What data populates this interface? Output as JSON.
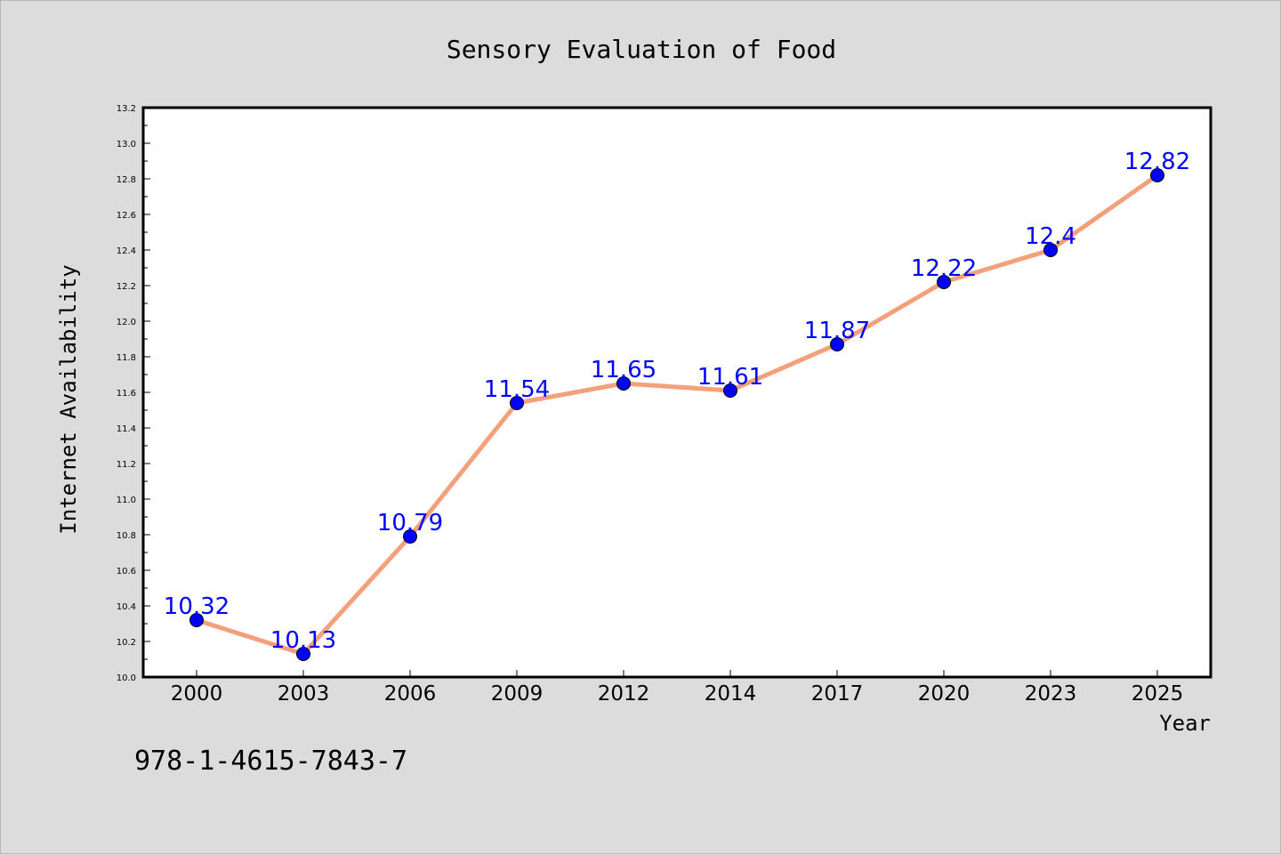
{
  "chart_data": {
    "type": "line",
    "title": "Sensory Evaluation of Food",
    "xlabel": "Year",
    "ylabel": "Internet Availability",
    "categories": [
      "2000",
      "2003",
      "2006",
      "2009",
      "2012",
      "2014",
      "2017",
      "2020",
      "2023",
      "2025"
    ],
    "series": [
      {
        "values": [
          10.32,
          10.13,
          10.79,
          11.54,
          11.65,
          11.61,
          11.87,
          12.22,
          12.4,
          12.82
        ],
        "data_labels": [
          "10.32",
          "10.13",
          "10.79",
          "11.54",
          "11.65",
          "11.61",
          "11.87",
          "12.22",
          "12.4",
          "12.82"
        ],
        "line_color": "#f4a07a",
        "marker_color": "#0000ff"
      }
    ],
    "ylim": [
      10.0,
      13.2
    ],
    "yticks": [
      "10.0",
      "10.2",
      "10.4",
      "10.6",
      "10.8",
      "11.0",
      "11.2",
      "11.4",
      "11.6",
      "11.8",
      "12.0",
      "12.2",
      "12.4",
      "12.6",
      "12.8",
      "13.0",
      "13.2"
    ],
    "grid": false,
    "legend": "none"
  },
  "annotation": "978-1-4615-7843-7",
  "colors": {
    "background": "#dcdcdc",
    "plot_background": "#ffffff",
    "line": "#f4a07a",
    "marker": "#0000ff",
    "data_label": "#0000ff"
  }
}
